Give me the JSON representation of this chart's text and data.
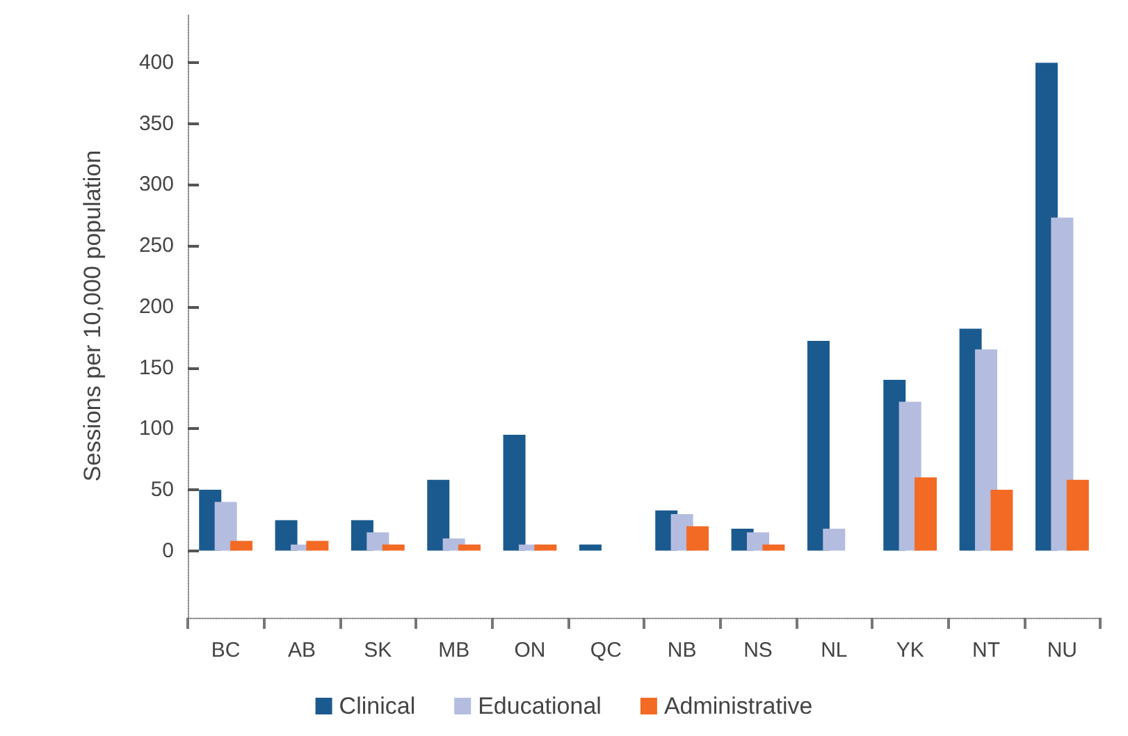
{
  "chart_data": {
    "type": "bar",
    "ylabel": "Sessions per 10,000 population",
    "categories": [
      "BC",
      "AB",
      "SK",
      "MB",
      "ON",
      "QC",
      "NB",
      "NS",
      "NL",
      "YK",
      "NT",
      "NU"
    ],
    "series": [
      {
        "name": "Clinical",
        "color": "#1b5a8e",
        "values": [
          50,
          25,
          25,
          58,
          95,
          5,
          33,
          18,
          172,
          140,
          182,
          400
        ]
      },
      {
        "name": "Educational",
        "color": "#b4bde0",
        "values": [
          40,
          5,
          15,
          10,
          5,
          0,
          30,
          15,
          18,
          122,
          165,
          273
        ]
      },
      {
        "name": "Administrative",
        "color": "#f26a24",
        "values": [
          8,
          8,
          5,
          5,
          5,
          0,
          20,
          5,
          0,
          60,
          50,
          58
        ]
      }
    ],
    "ylim": [
      -55,
      440
    ],
    "yticks": [
      0,
      50,
      100,
      150,
      200,
      250,
      300,
      350,
      400
    ],
    "grid": false,
    "legend": "bottom"
  }
}
